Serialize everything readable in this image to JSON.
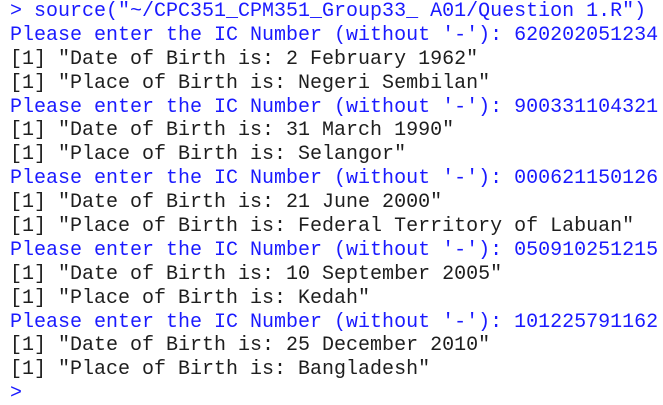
{
  "console": {
    "command": "> source(\"~/CPC351_CPM351_Group33_ A01/Question 1.R\")",
    "entries": [
      {
        "prompt": "Please enter the IC Number (without '-'): 620202051234",
        "output": [
          "[1] \"Date of Birth is: 2 February 1962\"",
          "[1] \"Place of Birth is: Negeri Sembilan\""
        ]
      },
      {
        "prompt": "Please enter the IC Number (without '-'): 900331104321",
        "output": [
          "[1] \"Date of Birth is: 31 March 1990\"",
          "[1] \"Place of Birth is: Selangor\""
        ]
      },
      {
        "prompt": "Please enter the IC Number (without '-'): 000621150126",
        "output": [
          "[1] \"Date of Birth is: 21 June 2000\"",
          "[1] \"Place of Birth is: Federal Territory of Labuan\""
        ]
      },
      {
        "prompt": "Please enter the IC Number (without '-'): 050910251215",
        "output": [
          "[1] \"Date of Birth is: 10 September 2005\"",
          "[1] \"Place of Birth is: Kedah\""
        ]
      },
      {
        "prompt": "Please enter the IC Number (without '-'): 101225791162",
        "output": [
          "[1] \"Date of Birth is: 25 December 2010\"",
          "[1] \"Place of Birth is: Bangladesh\""
        ]
      }
    ],
    "final_prompt": ">"
  }
}
